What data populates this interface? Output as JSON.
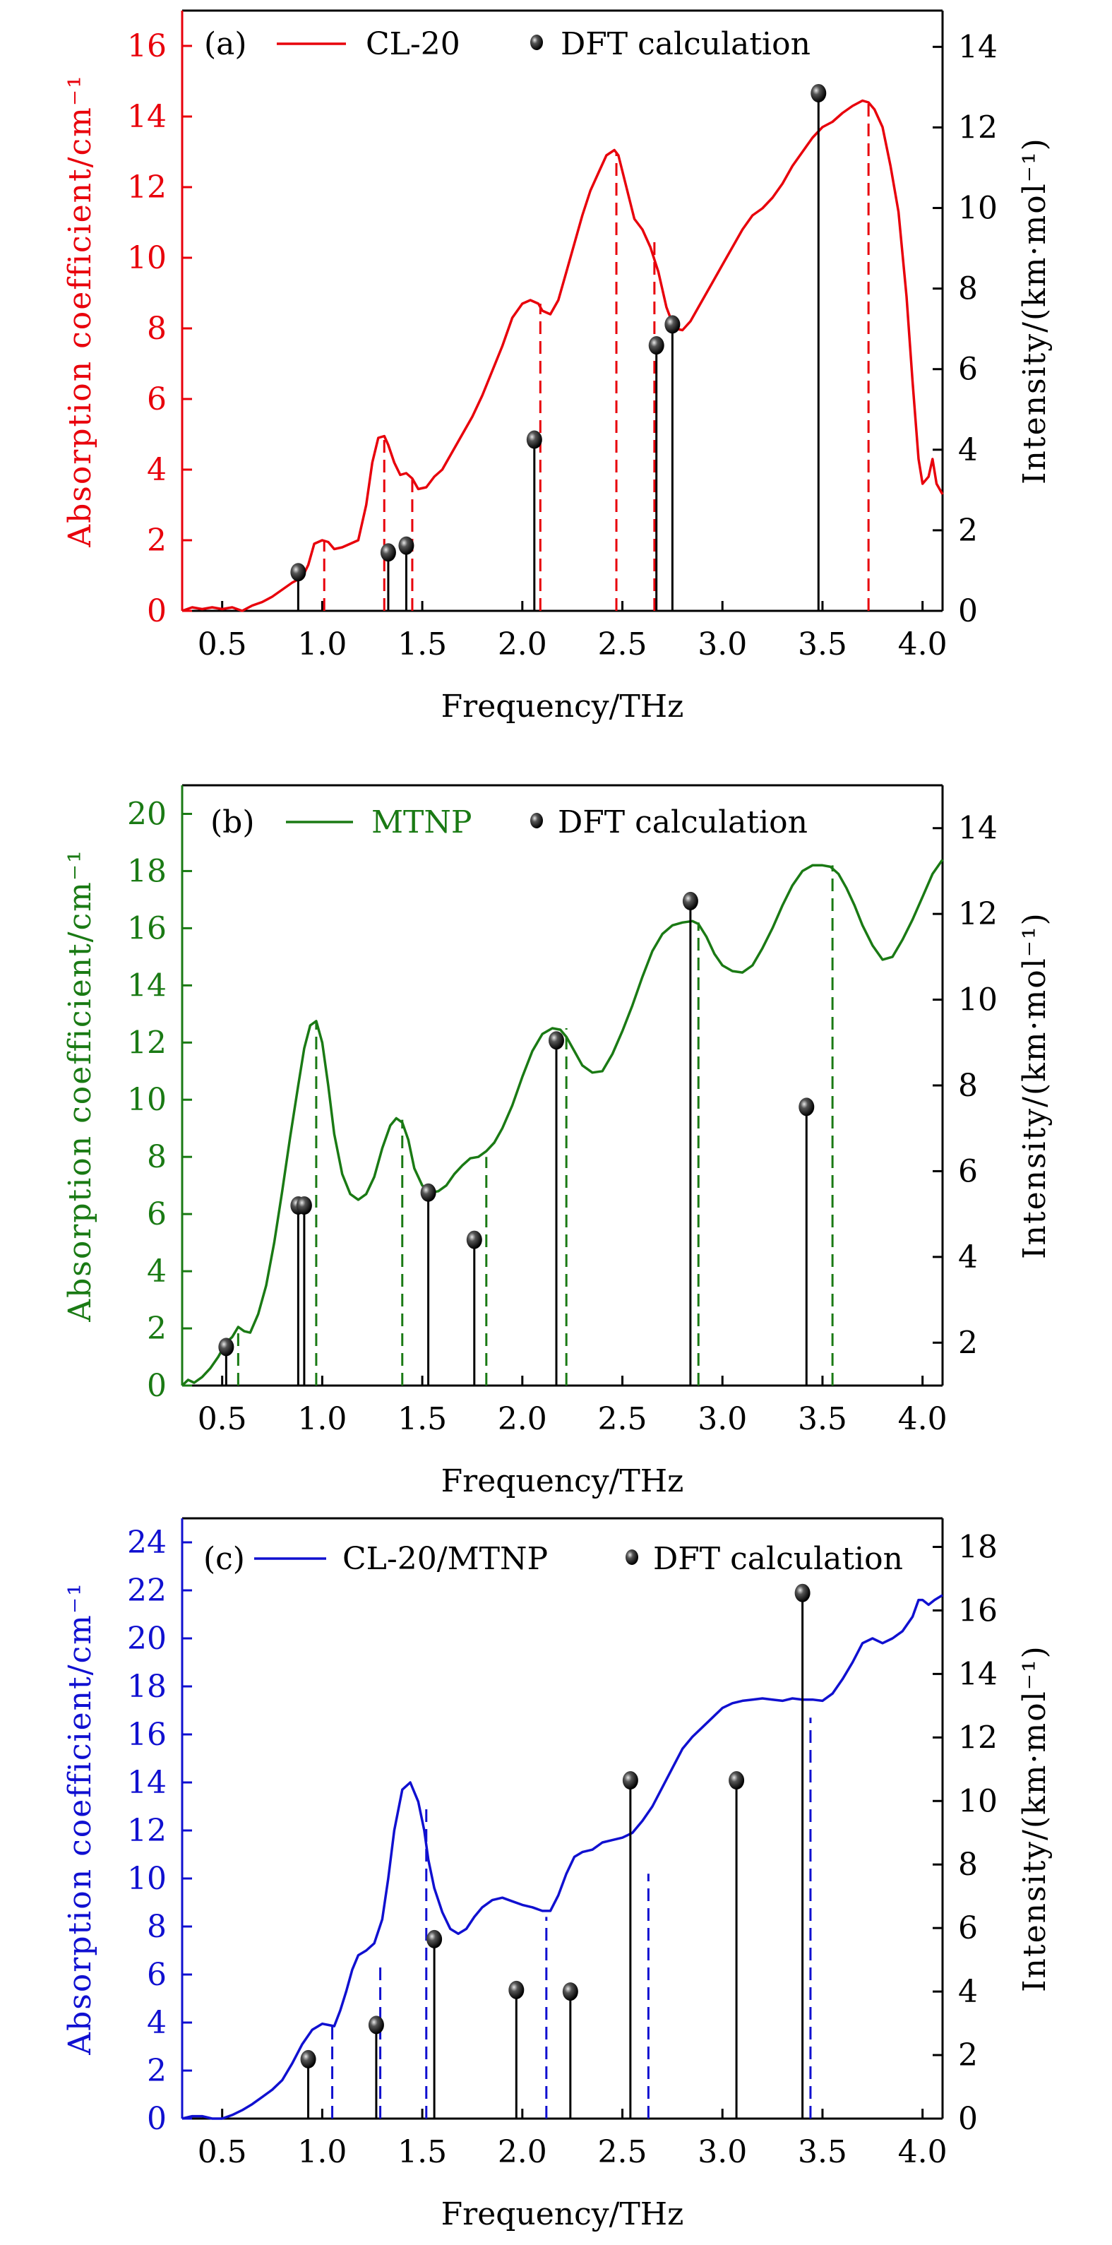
{
  "chart_data": [
    {
      "type": "line",
      "panel_label": "(a)",
      "xlabel": "Frequency/THz",
      "ylabel": "Absorption coefficient/cm⁻¹",
      "y2label": "Intensity/(km·mol⁻¹)",
      "xlim": [
        0.3,
        4.1
      ],
      "ylim": [
        0,
        17
      ],
      "y2lim": [
        0,
        14.9
      ],
      "xticks": [
        "0.5",
        "1.0",
        "1.5",
        "2.0",
        "2.5",
        "3.0",
        "3.5",
        "4.0"
      ],
      "xtick_values": [
        0.5,
        1.0,
        1.5,
        2.0,
        2.5,
        3.0,
        3.5,
        4.0
      ],
      "yticks": [
        0,
        2,
        4,
        6,
        8,
        10,
        12,
        14,
        16
      ],
      "y2ticks": [
        0,
        2,
        4,
        6,
        8,
        10,
        12,
        14
      ],
      "color": "#e8000b",
      "legend": {
        "line_label": "CL-20",
        "marker_label": "DFT calculation",
        "placement": "top"
      },
      "series": [
        {
          "name": "CL-20",
          "x": [
            0.3,
            0.35,
            0.4,
            0.45,
            0.5,
            0.55,
            0.6,
            0.65,
            0.7,
            0.75,
            0.8,
            0.85,
            0.9,
            0.93,
            0.96,
            1.0,
            1.03,
            1.06,
            1.1,
            1.14,
            1.18,
            1.22,
            1.25,
            1.28,
            1.31,
            1.33,
            1.36,
            1.39,
            1.42,
            1.45,
            1.48,
            1.52,
            1.56,
            1.6,
            1.65,
            1.7,
            1.75,
            1.8,
            1.85,
            1.9,
            1.95,
            2.0,
            2.04,
            2.08,
            2.1,
            2.14,
            2.18,
            2.22,
            2.26,
            2.3,
            2.34,
            2.38,
            2.42,
            2.46,
            2.48,
            2.52,
            2.56,
            2.6,
            2.64,
            2.68,
            2.72,
            2.76,
            2.8,
            2.84,
            2.9,
            2.95,
            3.0,
            3.05,
            3.1,
            3.15,
            3.2,
            3.25,
            3.3,
            3.35,
            3.4,
            3.45,
            3.5,
            3.55,
            3.6,
            3.65,
            3.7,
            3.73,
            3.76,
            3.8,
            3.84,
            3.88,
            3.92,
            3.95,
            3.98,
            4.0,
            4.03,
            4.05,
            4.07,
            4.1
          ],
          "y": [
            0.0,
            0.1,
            0.05,
            0.1,
            0.05,
            0.1,
            0.0,
            0.15,
            0.25,
            0.4,
            0.6,
            0.8,
            0.95,
            1.3,
            1.9,
            2.0,
            1.95,
            1.75,
            1.8,
            1.9,
            2.0,
            3.0,
            4.2,
            4.9,
            4.95,
            4.7,
            4.2,
            3.85,
            3.9,
            3.75,
            3.45,
            3.5,
            3.8,
            4.0,
            4.5,
            5.0,
            5.5,
            6.1,
            6.8,
            7.5,
            8.3,
            8.7,
            8.8,
            8.7,
            8.5,
            8.4,
            8.8,
            9.6,
            10.4,
            11.2,
            11.9,
            12.4,
            12.9,
            13.05,
            12.9,
            12.0,
            11.1,
            10.8,
            10.3,
            9.6,
            8.6,
            8.0,
            7.95,
            8.2,
            8.8,
            9.3,
            9.8,
            10.3,
            10.8,
            11.2,
            11.4,
            11.7,
            12.1,
            12.6,
            13.0,
            13.4,
            13.7,
            13.85,
            14.1,
            14.3,
            14.45,
            14.4,
            14.2,
            13.7,
            12.6,
            11.3,
            8.9,
            6.5,
            4.3,
            3.6,
            3.8,
            4.3,
            3.6,
            3.3
          ]
        },
        {
          "name": "DFT calculation",
          "type": "stem",
          "axis": "right",
          "x": [
            0.88,
            1.33,
            1.42,
            2.06,
            2.67,
            2.75,
            3.48
          ],
          "y": [
            0.96,
            1.45,
            1.62,
            4.25,
            6.59,
            7.11,
            12.85
          ]
        },
        {
          "name": "peak-markers",
          "type": "dashed-vline",
          "x": [
            1.01,
            1.31,
            1.45,
            2.09,
            2.47,
            2.66,
            3.73
          ],
          "y": [
            2.0,
            4.9,
            3.8,
            8.7,
            13.0,
            10.5,
            14.4
          ]
        }
      ]
    },
    {
      "type": "line",
      "panel_label": "(b)",
      "xlabel": "Frequency/THz",
      "ylabel": "Absorption coefficient/cm⁻¹",
      "y2label": "Intensity/(km·mol⁻¹)",
      "xlim": [
        0.3,
        4.1
      ],
      "ylim": [
        0,
        21
      ],
      "y2lim": [
        1.0,
        15.0
      ],
      "xticks": [
        "0.5",
        "1.0",
        "1.5",
        "2.0",
        "2.5",
        "3.0",
        "3.5",
        "4.0"
      ],
      "xtick_values": [
        0.5,
        1.0,
        1.5,
        2.0,
        2.5,
        3.0,
        3.5,
        4.0
      ],
      "yticks": [
        0,
        2,
        4,
        6,
        8,
        10,
        12,
        14,
        16,
        18,
        20
      ],
      "y2ticks": [
        2,
        4,
        6,
        8,
        10,
        12,
        14
      ],
      "color": "#1a7a14",
      "legend": {
        "line_label": "MTNP",
        "marker_label": "DFT calculation",
        "placement": "top"
      },
      "series": [
        {
          "name": "MTNP",
          "x": [
            0.3,
            0.33,
            0.36,
            0.4,
            0.44,
            0.48,
            0.52,
            0.55,
            0.58,
            0.61,
            0.64,
            0.68,
            0.72,
            0.76,
            0.8,
            0.84,
            0.88,
            0.91,
            0.94,
            0.97,
            1.0,
            1.03,
            1.06,
            1.1,
            1.14,
            1.18,
            1.22,
            1.26,
            1.3,
            1.34,
            1.37,
            1.4,
            1.43,
            1.46,
            1.5,
            1.54,
            1.58,
            1.62,
            1.66,
            1.7,
            1.74,
            1.78,
            1.82,
            1.86,
            1.9,
            1.95,
            2.0,
            2.05,
            2.1,
            2.15,
            2.19,
            2.22,
            2.26,
            2.3,
            2.35,
            2.4,
            2.45,
            2.5,
            2.55,
            2.6,
            2.65,
            2.7,
            2.75,
            2.8,
            2.85,
            2.88,
            2.92,
            2.96,
            3.0,
            3.05,
            3.1,
            3.15,
            3.2,
            3.25,
            3.3,
            3.35,
            3.4,
            3.45,
            3.5,
            3.54,
            3.58,
            3.62,
            3.66,
            3.7,
            3.75,
            3.8,
            3.85,
            3.9,
            3.95,
            4.0,
            4.05,
            4.1
          ],
          "y": [
            0.0,
            0.2,
            0.1,
            0.3,
            0.6,
            1.0,
            1.5,
            1.7,
            2.05,
            1.9,
            1.85,
            2.5,
            3.5,
            5.0,
            6.8,
            8.7,
            10.5,
            11.8,
            12.6,
            12.75,
            12.0,
            10.5,
            8.8,
            7.4,
            6.7,
            6.5,
            6.7,
            7.3,
            8.3,
            9.1,
            9.35,
            9.2,
            8.6,
            7.6,
            7.0,
            6.75,
            6.8,
            7.0,
            7.4,
            7.7,
            7.95,
            8.0,
            8.2,
            8.5,
            9.0,
            9.8,
            10.8,
            11.7,
            12.3,
            12.5,
            12.45,
            12.2,
            11.7,
            11.2,
            10.95,
            11.0,
            11.6,
            12.4,
            13.3,
            14.3,
            15.2,
            15.8,
            16.1,
            16.2,
            16.25,
            16.15,
            15.7,
            15.1,
            14.7,
            14.5,
            14.45,
            14.7,
            15.3,
            16.0,
            16.8,
            17.5,
            18.0,
            18.2,
            18.2,
            18.15,
            17.9,
            17.4,
            16.8,
            16.1,
            15.4,
            14.9,
            15.0,
            15.6,
            16.3,
            17.1,
            17.9,
            18.4
          ]
        },
        {
          "name": "DFT calculation",
          "type": "stem",
          "axis": "right",
          "x": [
            0.52,
            0.88,
            0.91,
            1.53,
            1.76,
            2.17,
            2.84,
            3.42
          ],
          "y": [
            1.9,
            5.2,
            5.2,
            5.5,
            4.4,
            9.05,
            12.3,
            7.5
          ]
        },
        {
          "name": "peak-markers",
          "type": "dashed-vline",
          "x": [
            0.58,
            0.97,
            1.4,
            1.82,
            2.22,
            2.88,
            3.55
          ],
          "y": [
            2.0,
            12.7,
            9.3,
            8.0,
            12.5,
            16.2,
            18.2
          ]
        }
      ]
    },
    {
      "type": "line",
      "panel_label": "(c)",
      "xlabel": "Frequency/THz",
      "ylabel": "Absorption coefficient/cm⁻¹",
      "y2label": "Intensity/(km·mol⁻¹)",
      "xlim": [
        0.3,
        4.1
      ],
      "ylim": [
        0,
        25
      ],
      "y2lim": [
        0,
        18.9
      ],
      "xticks": [
        "0.5",
        "1.0",
        "1.5",
        "2.0",
        "2.5",
        "3.0",
        "3.5",
        "4.0"
      ],
      "xtick_values": [
        0.5,
        1.0,
        1.5,
        2.0,
        2.5,
        3.0,
        3.5,
        4.0
      ],
      "yticks": [
        0,
        2,
        4,
        6,
        8,
        10,
        12,
        14,
        16,
        18,
        20,
        22,
        24
      ],
      "y2ticks": [
        0,
        2,
        4,
        6,
        8,
        10,
        12,
        14,
        16,
        18
      ],
      "color": "#1010d0",
      "legend": {
        "line_label": "CL-20/MTNP",
        "marker_label": "DFT calculation",
        "placement": "top"
      },
      "series": [
        {
          "name": "CL-20/MTNP",
          "x": [
            0.3,
            0.35,
            0.4,
            0.45,
            0.5,
            0.55,
            0.6,
            0.65,
            0.7,
            0.75,
            0.8,
            0.85,
            0.9,
            0.95,
            1.0,
            1.03,
            1.06,
            1.09,
            1.12,
            1.15,
            1.18,
            1.22,
            1.26,
            1.3,
            1.33,
            1.36,
            1.4,
            1.44,
            1.48,
            1.51,
            1.53,
            1.56,
            1.6,
            1.64,
            1.68,
            1.72,
            1.76,
            1.8,
            1.85,
            1.9,
            1.95,
            2.0,
            2.05,
            2.1,
            2.14,
            2.18,
            2.22,
            2.26,
            2.3,
            2.35,
            2.4,
            2.45,
            2.5,
            2.55,
            2.6,
            2.65,
            2.7,
            2.75,
            2.8,
            2.85,
            2.9,
            2.95,
            3.0,
            3.05,
            3.1,
            3.15,
            3.2,
            3.25,
            3.3,
            3.35,
            3.4,
            3.45,
            3.5,
            3.55,
            3.6,
            3.65,
            3.7,
            3.75,
            3.8,
            3.85,
            3.9,
            3.95,
            3.98,
            4.0,
            4.03,
            4.06,
            4.1
          ],
          "y": [
            0.0,
            0.1,
            0.1,
            0.0,
            0.0,
            0.15,
            0.35,
            0.6,
            0.9,
            1.2,
            1.6,
            2.3,
            3.1,
            3.7,
            3.95,
            3.9,
            3.85,
            4.5,
            5.3,
            6.2,
            6.8,
            7.0,
            7.3,
            8.3,
            10.0,
            12.0,
            13.7,
            14.0,
            13.2,
            12.0,
            10.8,
            9.6,
            8.6,
            7.9,
            7.7,
            7.9,
            8.4,
            8.8,
            9.1,
            9.2,
            9.05,
            8.9,
            8.8,
            8.65,
            8.65,
            9.3,
            10.2,
            10.9,
            11.1,
            11.2,
            11.5,
            11.6,
            11.7,
            11.9,
            12.4,
            13.0,
            13.8,
            14.6,
            15.4,
            15.9,
            16.3,
            16.7,
            17.1,
            17.3,
            17.4,
            17.45,
            17.5,
            17.45,
            17.4,
            17.5,
            17.45,
            17.45,
            17.4,
            17.7,
            18.3,
            19.0,
            19.8,
            20.0,
            19.8,
            20.0,
            20.3,
            20.9,
            21.6,
            21.6,
            21.4,
            21.6,
            21.8
          ]
        },
        {
          "name": "DFT calculation",
          "type": "stem",
          "axis": "right",
          "x": [
            0.93,
            1.27,
            1.56,
            1.97,
            2.24,
            2.54,
            3.07,
            3.4
          ],
          "y": [
            1.87,
            2.95,
            5.65,
            4.05,
            4.0,
            10.65,
            10.65,
            16.55
          ]
        },
        {
          "name": "peak-markers",
          "type": "dashed-vline",
          "x": [
            1.05,
            1.29,
            1.52,
            2.12,
            2.63,
            3.44
          ],
          "y": [
            4.0,
            6.3,
            13.0,
            8.4,
            10.2,
            16.7
          ]
        }
      ]
    }
  ]
}
